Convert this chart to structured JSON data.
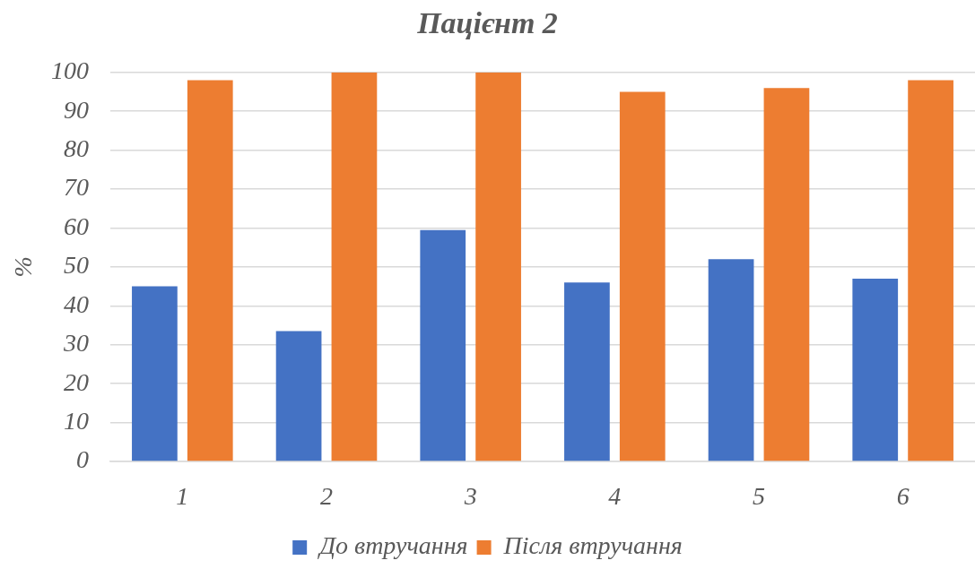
{
  "chart_data": {
    "type": "bar",
    "title": "Пацієнт 2",
    "ylabel": "%",
    "categories": [
      "1",
      "2",
      "3",
      "4",
      "5",
      "6"
    ],
    "series": [
      {
        "name": "До втручання",
        "color": "#4472c4",
        "values": [
          45,
          33.5,
          59.5,
          46,
          52,
          47
        ]
      },
      {
        "name": "Після втручання",
        "color": "#ed7d31",
        "values": [
          98,
          100,
          100,
          95,
          96,
          98
        ]
      }
    ],
    "ylim": [
      0,
      100
    ],
    "yticks": [
      0,
      10,
      20,
      30,
      40,
      50,
      60,
      70,
      80,
      90,
      100
    ],
    "grid": "y",
    "legend": "bottom"
  }
}
